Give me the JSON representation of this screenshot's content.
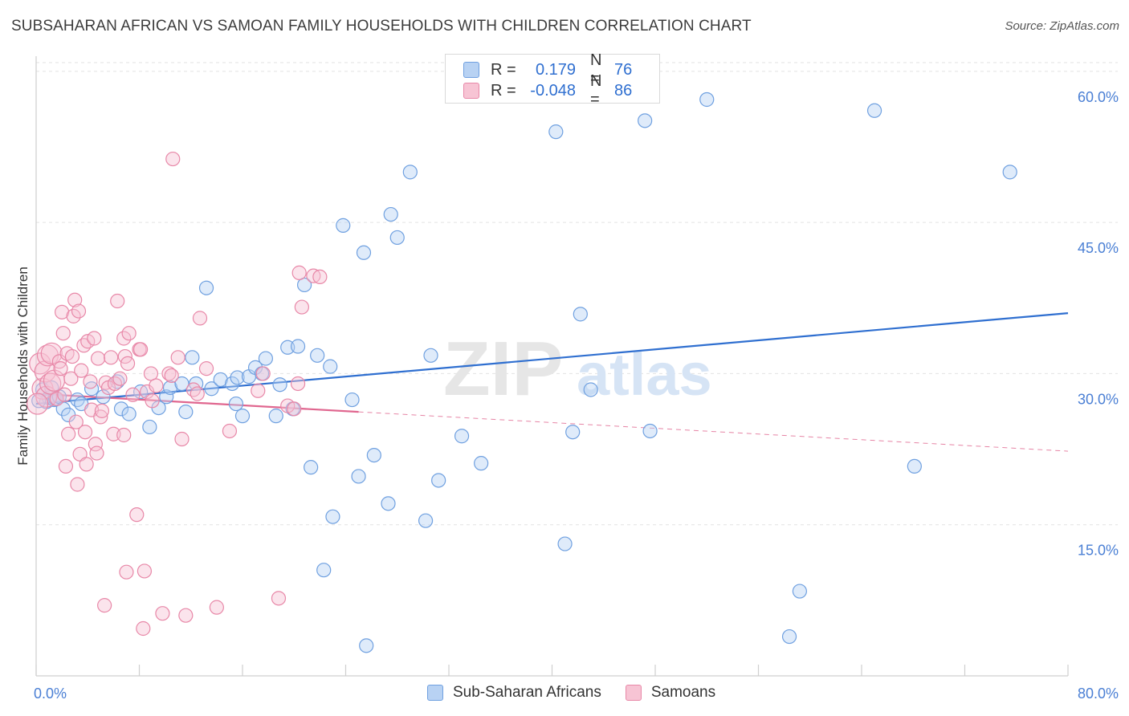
{
  "title": "SUBSAHARAN AFRICAN VS SAMOAN FAMILY HOUSEHOLDS WITH CHILDREN CORRELATION CHART",
  "source": "Source: ZipAtlas.com",
  "watermark": {
    "zip": "ZIP",
    "atlas": "atlas"
  },
  "legend": {
    "r_label": "R =",
    "n_label": "N =",
    "series": [
      {
        "name": "Sub-Saharan Africans",
        "r": "0.179",
        "n": "76",
        "color": "#6fa0e0",
        "fill": "#b8d2f3"
      },
      {
        "name": "Samoans",
        "r": "-0.048",
        "n": "86",
        "color": "#e888a8",
        "fill": "#f7c4d4"
      }
    ]
  },
  "chart_data": {
    "type": "scatter",
    "title": "SUBSAHARAN AFRICAN VS SAMOAN FAMILY HOUSEHOLDS WITH CHILDREN CORRELATION CHART",
    "xlabel": "",
    "ylabel": "Family Households with Children",
    "xlim": [
      0,
      80
    ],
    "ylim": [
      0,
      61.5
    ],
    "x_tick_labels": [
      "0.0%",
      "80.0%"
    ],
    "y_ticks": [
      15,
      30,
      45,
      60
    ],
    "y_tick_labels": [
      "15.0%",
      "30.0%",
      "45.0%",
      "60.0%"
    ],
    "grid": true,
    "series": [
      {
        "name": "Sub-Saharan Africans",
        "color": "#6fa0e0",
        "trend": {
          "x": [
            0,
            80
          ],
          "y": [
            27.0,
            36.0
          ],
          "color": "#2f6fd0"
        },
        "points": [
          [
            0.5,
            28.4
          ],
          [
            0.8,
            27.2
          ],
          [
            1,
            27.6
          ],
          [
            1.2,
            28.6
          ],
          [
            1.4,
            27.4
          ],
          [
            1.5,
            27.5
          ],
          [
            1.8,
            27.7
          ],
          [
            2.1,
            26.5
          ],
          [
            2.5,
            25.9
          ],
          [
            3.2,
            27.4
          ],
          [
            3.5,
            27.0
          ],
          [
            4.3,
            28.5
          ],
          [
            5.2,
            27.7
          ],
          [
            6.3,
            29.2
          ],
          [
            6.6,
            26.5
          ],
          [
            7.2,
            26.0
          ],
          [
            8.1,
            28.2
          ],
          [
            8.8,
            24.7
          ],
          [
            9.5,
            26.6
          ],
          [
            10.1,
            27.7
          ],
          [
            10.4,
            28.6
          ],
          [
            11.3,
            29.0
          ],
          [
            11.6,
            26.2
          ],
          [
            12.1,
            31.6
          ],
          [
            12.4,
            29.0
          ],
          [
            13.2,
            38.5
          ],
          [
            13.6,
            28.5
          ],
          [
            14.3,
            29.4
          ],
          [
            15.2,
            29.0
          ],
          [
            15.6,
            29.6
          ],
          [
            15.5,
            27.0
          ],
          [
            16.0,
            25.8
          ],
          [
            16.5,
            29.7
          ],
          [
            17.0,
            30.6
          ],
          [
            17.5,
            30.0
          ],
          [
            17.8,
            31.5
          ],
          [
            18.6,
            25.8
          ],
          [
            18.9,
            28.9
          ],
          [
            19.5,
            32.6
          ],
          [
            19.9,
            26.5
          ],
          [
            20.3,
            32.7
          ],
          [
            20.8,
            38.8
          ],
          [
            21.3,
            20.7
          ],
          [
            21.8,
            31.8
          ],
          [
            22.3,
            10.5
          ],
          [
            22.8,
            30.7
          ],
          [
            23.0,
            15.8
          ],
          [
            23.8,
            44.7
          ],
          [
            24.5,
            27.4
          ],
          [
            25.0,
            19.8
          ],
          [
            25.4,
            42.0
          ],
          [
            25.6,
            3.0
          ],
          [
            26.2,
            21.9
          ],
          [
            27.3,
            17.1
          ],
          [
            27.5,
            45.8
          ],
          [
            28.0,
            43.5
          ],
          [
            29.0,
            50.0
          ],
          [
            30.2,
            15.4
          ],
          [
            30.6,
            31.8
          ],
          [
            31.2,
            19.4
          ],
          [
            33.0,
            23.8
          ],
          [
            34.5,
            21.1
          ],
          [
            40.3,
            54.0
          ],
          [
            41.0,
            13.1
          ],
          [
            41.6,
            24.2
          ],
          [
            42.2,
            35.9
          ],
          [
            43.0,
            28.4
          ],
          [
            47.2,
            55.1
          ],
          [
            47.6,
            24.3
          ],
          [
            52.0,
            57.2
          ],
          [
            58.4,
            3.9
          ],
          [
            59.2,
            8.4
          ],
          [
            65.0,
            56.1
          ],
          [
            68.1,
            20.8
          ],
          [
            75.5,
            50.0
          ],
          [
            0.2,
            27.3
          ]
        ]
      },
      {
        "name": "Samoans",
        "color": "#e888a8",
        "trend": {
          "x": [
            0,
            25
          ],
          "y": [
            28.0,
            26.2
          ],
          "color": "#e0668f",
          "dashed_to": [
            80,
            22.3
          ]
        },
        "points": [
          [
            0.3,
            31.0
          ],
          [
            0.5,
            28.5
          ],
          [
            0.7,
            30.2
          ],
          [
            0.8,
            27.7
          ],
          [
            0.9,
            31.8
          ],
          [
            1.1,
            29.0
          ],
          [
            1.2,
            32.0
          ],
          [
            1.4,
            29.3
          ],
          [
            1.6,
            27.5
          ],
          [
            1.8,
            31.2
          ],
          [
            1.9,
            30.5
          ],
          [
            2.0,
            36.1
          ],
          [
            2.1,
            34.0
          ],
          [
            2.2,
            27.9
          ],
          [
            2.3,
            20.8
          ],
          [
            2.4,
            32.0
          ],
          [
            2.5,
            24.0
          ],
          [
            2.7,
            29.5
          ],
          [
            2.8,
            31.7
          ],
          [
            2.9,
            35.7
          ],
          [
            3.0,
            37.3
          ],
          [
            3.1,
            25.2
          ],
          [
            3.2,
            19.0
          ],
          [
            3.3,
            36.2
          ],
          [
            3.4,
            22.0
          ],
          [
            3.5,
            30.3
          ],
          [
            3.7,
            32.8
          ],
          [
            3.8,
            24.2
          ],
          [
            3.9,
            21.0
          ],
          [
            4.0,
            33.2
          ],
          [
            4.2,
            29.2
          ],
          [
            4.3,
            26.4
          ],
          [
            4.5,
            33.5
          ],
          [
            4.6,
            23.0
          ],
          [
            4.7,
            22.1
          ],
          [
            4.8,
            31.5
          ],
          [
            5.0,
            25.7
          ],
          [
            5.1,
            26.3
          ],
          [
            5.3,
            7.0
          ],
          [
            5.4,
            29.1
          ],
          [
            5.6,
            28.6
          ],
          [
            5.8,
            31.6
          ],
          [
            6.0,
            24.0
          ],
          [
            6.1,
            29.0
          ],
          [
            6.3,
            37.2
          ],
          [
            6.5,
            29.5
          ],
          [
            6.8,
            23.9
          ],
          [
            6.8,
            33.5
          ],
          [
            6.9,
            31.7
          ],
          [
            7.0,
            10.3
          ],
          [
            7.1,
            31.0
          ],
          [
            7.2,
            34.0
          ],
          [
            7.5,
            27.9
          ],
          [
            7.8,
            16.0
          ],
          [
            8.0,
            32.4
          ],
          [
            8.1,
            32.4
          ],
          [
            8.3,
            4.7
          ],
          [
            8.4,
            10.4
          ],
          [
            8.6,
            28.2
          ],
          [
            8.9,
            30.0
          ],
          [
            9.0,
            27.3
          ],
          [
            9.3,
            28.8
          ],
          [
            9.8,
            6.2
          ],
          [
            10.3,
            30.0
          ],
          [
            10.5,
            29.8
          ],
          [
            10.6,
            51.3
          ],
          [
            11.0,
            31.6
          ],
          [
            11.3,
            23.5
          ],
          [
            11.6,
            6.0
          ],
          [
            12.2,
            28.4
          ],
          [
            12.5,
            28.0
          ],
          [
            12.7,
            35.5
          ],
          [
            13.2,
            30.5
          ],
          [
            14.0,
            6.8
          ],
          [
            15.0,
            24.3
          ],
          [
            17.2,
            28.3
          ],
          [
            17.6,
            30.0
          ],
          [
            18.8,
            7.7
          ],
          [
            19.5,
            26.8
          ],
          [
            20.0,
            26.5
          ],
          [
            20.3,
            29.0
          ],
          [
            20.4,
            40.0
          ],
          [
            20.6,
            36.6
          ],
          [
            21.5,
            39.7
          ],
          [
            22.0,
            39.6
          ],
          [
            0.1,
            27.0
          ]
        ]
      }
    ]
  }
}
